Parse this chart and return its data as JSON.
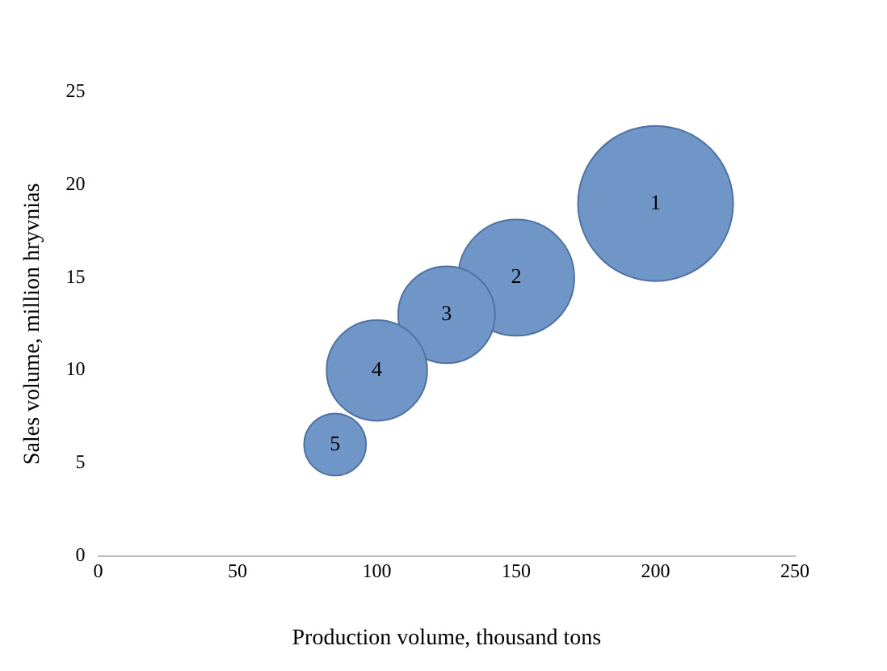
{
  "chart_data": {
    "type": "bubble",
    "xlabel": "Production volume, thousand tons",
    "ylabel": "Sales volume, million hryvnias",
    "x": [
      200,
      150,
      125,
      100,
      85
    ],
    "values": [
      19,
      15,
      13,
      10,
      6
    ],
    "sizes": [
      1,
      0.56,
      0.39,
      0.42,
      0.16
    ],
    "color": "#7096c8",
    "annotations": [
      {
        "text": "1",
        "x": 200,
        "y": 19
      },
      {
        "text": "2",
        "x": 150,
        "y": 15
      },
      {
        "text": "3",
        "x": 125,
        "y": 13
      },
      {
        "text": "4",
        "x": 100,
        "y": 10
      },
      {
        "text": "5",
        "x": 85,
        "y": 6
      }
    ],
    "xlim": [
      0,
      250
    ],
    "xticks": [
      0,
      50,
      100,
      150,
      200,
      250
    ],
    "ylim": [
      0,
      25
    ],
    "yticks": [
      0,
      5,
      10,
      15,
      20,
      25
    ],
    "grid": false,
    "legend": false
  }
}
